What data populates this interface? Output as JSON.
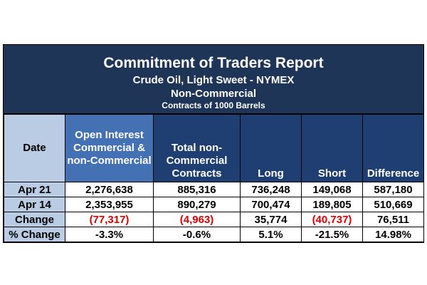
{
  "header": {
    "title": "Commitment of Traders Report",
    "subtitle": "Crude Oil, Light Sweet - NYMEX",
    "category": "Non-Commercial",
    "units": "Contracts of 1000 Barrels"
  },
  "colors": {
    "title_bg": "#1f3558",
    "column_header_bg": "#1f3f73",
    "open_interest_header_bg": "#4470b4",
    "row_label_bg": "#b9cce4",
    "negative_text": "#e00000"
  },
  "chart_data": {
    "type": "table",
    "columns": [
      "Date",
      "Open Interest Commercial & non-Commercial",
      "Total non-Commercial Contracts",
      "Long",
      "Short",
      "Difference"
    ],
    "rows": [
      {
        "label": "Apr 21",
        "values": [
          "2,276,638",
          "885,316",
          "736,248",
          "149,068",
          "587,180"
        ],
        "negative": [
          false,
          false,
          false,
          false,
          false
        ]
      },
      {
        "label": "Apr 14",
        "values": [
          "2,353,955",
          "890,279",
          "700,474",
          "189,805",
          "510,669"
        ],
        "negative": [
          false,
          false,
          false,
          false,
          false
        ]
      },
      {
        "label": "Change",
        "values": [
          "(77,317)",
          "(4,963)",
          "35,774",
          "(40,737)",
          "76,511"
        ],
        "negative": [
          true,
          true,
          false,
          true,
          false
        ]
      },
      {
        "label": "% Change",
        "values": [
          "-3.3%",
          "-0.6%",
          "5.1%",
          "-21.5%",
          "14.98%"
        ],
        "negative": [
          false,
          false,
          false,
          false,
          false
        ]
      }
    ]
  }
}
